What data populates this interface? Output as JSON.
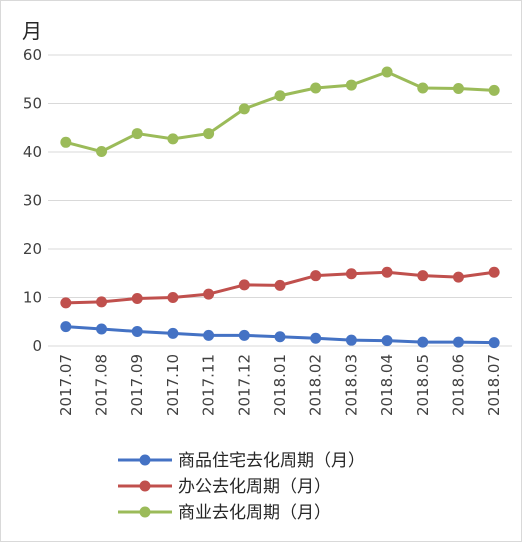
{
  "chart_data": {
    "type": "line",
    "ylabel": "月",
    "ylim": [
      0,
      60
    ],
    "yticks": [
      0,
      10,
      20,
      30,
      40,
      50,
      60
    ],
    "grid": "horizontal",
    "legend_position": "bottom",
    "categories": [
      "2017.07",
      "2017.08",
      "2017.09",
      "2017.10",
      "2017.11",
      "2017.12",
      "2018.01",
      "2018.02",
      "2018.03",
      "2018.04",
      "2018.05",
      "2018.06",
      "2018.07"
    ],
    "series": [
      {
        "name": "商品住宅去化周期（月）",
        "color": "#4472c4",
        "values": [
          4.0,
          3.5,
          3.0,
          2.6,
          2.2,
          2.2,
          1.9,
          1.6,
          1.2,
          1.1,
          0.8,
          0.8,
          0.7
        ]
      },
      {
        "name": "办公去化周期（月）",
        "color": "#c0504d",
        "values": [
          8.9,
          9.1,
          9.8,
          10.0,
          10.7,
          12.6,
          12.5,
          14.5,
          14.9,
          15.2,
          14.5,
          14.2,
          15.2
        ]
      },
      {
        "name": "商业去化周期（月）",
        "color": "#9bbb59",
        "values": [
          42.0,
          40.1,
          43.8,
          42.7,
          43.8,
          48.9,
          51.6,
          53.2,
          53.8,
          56.5,
          53.2,
          53.1,
          52.7
        ]
      }
    ]
  }
}
